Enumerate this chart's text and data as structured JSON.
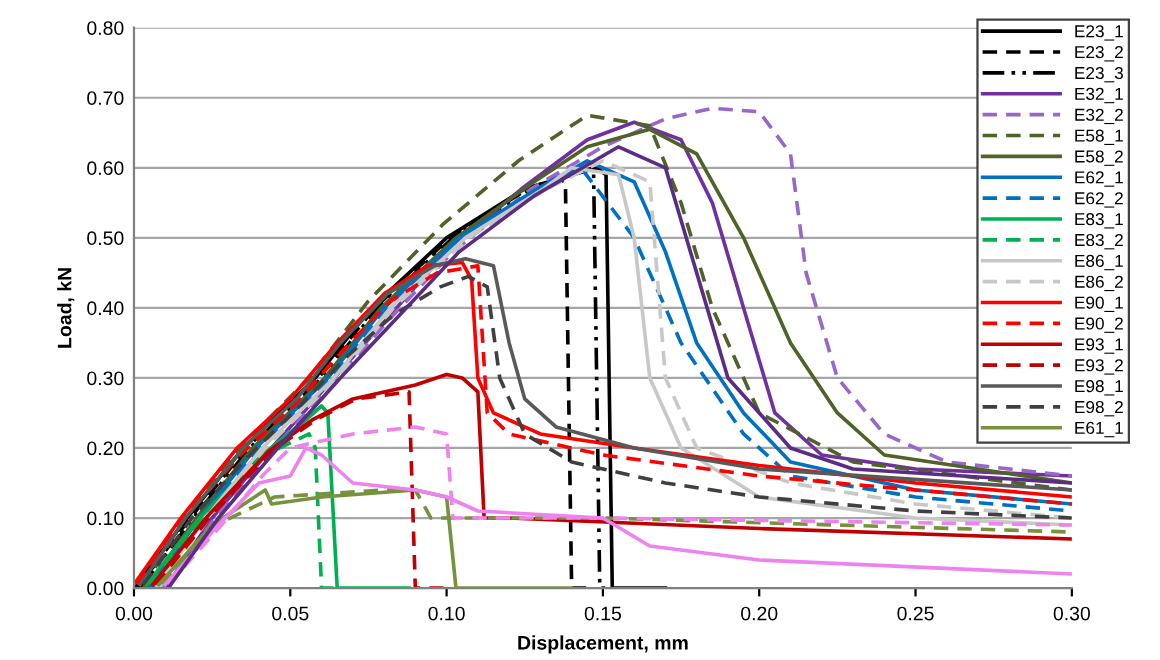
{
  "chart_data": {
    "type": "line",
    "xlabel": "Displacement, mm",
    "ylabel": "Load, kN",
    "xlim": [
      0,
      0.3
    ],
    "xticks": [
      {
        "value": 0,
        "label": "0.00"
      },
      {
        "value": 0.05,
        "label": "0.05"
      },
      {
        "value": 0.1,
        "label": "0.10"
      },
      {
        "value": 0.15,
        "label": "0.15"
      },
      {
        "value": 0.2,
        "label": "0.20"
      },
      {
        "value": 0.25,
        "label": "0.25"
      },
      {
        "value": 0.3,
        "label": "0.30"
      }
    ],
    "ylim": [
      0,
      0.8
    ],
    "yticks": [
      {
        "value": 0,
        "label": "0.00"
      },
      {
        "value": 0.1,
        "label": "0.10"
      },
      {
        "value": 0.2,
        "label": "0.20"
      },
      {
        "value": 0.3,
        "label": "0.30"
      },
      {
        "value": 0.4,
        "label": "0.40"
      },
      {
        "value": 0.5,
        "label": "0.50"
      },
      {
        "value": 0.6,
        "label": "0.60"
      },
      {
        "value": 0.7,
        "label": "0.70"
      },
      {
        "value": 0.8,
        "label": "0.80"
      }
    ],
    "grid": "y",
    "legend": "right",
    "marker": "none",
    "series": [
      {
        "name": "E23_1",
        "color": "#000000",
        "line_style": "solid",
        "x": [
          0,
          0.017,
          0.035,
          0.058,
          0.076,
          0.1,
          0.125,
          0.148,
          0.151,
          0.153,
          0.17
        ],
        "values": [
          0,
          0.1,
          0.2,
          0.3,
          0.4,
          0.5,
          0.57,
          0.6,
          0.59,
          0,
          0
        ]
      },
      {
        "name": "E23_2",
        "color": "#000000",
        "line_style": "dashed",
        "x": [
          0.001,
          0.018,
          0.036,
          0.059,
          0.077,
          0.101,
          0.126,
          0.135,
          0.138,
          0.14,
          0.147
        ],
        "values": [
          0,
          0.1,
          0.2,
          0.3,
          0.4,
          0.5,
          0.57,
          0.585,
          0.58,
          0,
          0
        ]
      },
      {
        "name": "E23_3",
        "color": "#000000",
        "line_style": "dashdot",
        "x": [
          0.002,
          0.019,
          0.037,
          0.06,
          0.078,
          0.102,
          0.127,
          0.147,
          0.149,
          0.152
        ],
        "values": [
          0,
          0.1,
          0.2,
          0.3,
          0.4,
          0.5,
          0.57,
          0.6,
          0,
          0
        ]
      },
      {
        "name": "E32_1",
        "color": "#7030a0",
        "line_style": "solid",
        "x": [
          0.01,
          0.025,
          0.044,
          0.064,
          0.082,
          0.1,
          0.124,
          0.145,
          0.16,
          0.175,
          0.185,
          0.195,
          0.205,
          0.22,
          0.25,
          0.3
        ],
        "values": [
          0,
          0.1,
          0.2,
          0.3,
          0.39,
          0.48,
          0.57,
          0.64,
          0.665,
          0.64,
          0.55,
          0.4,
          0.25,
          0.19,
          0.17,
          0.16
        ]
      },
      {
        "name": "E32_2",
        "color": "#9966cc",
        "line_style": "dashed",
        "x": [
          0.009,
          0.026,
          0.045,
          0.065,
          0.083,
          0.102,
          0.127,
          0.15,
          0.17,
          0.185,
          0.2,
          0.21,
          0.215,
          0.225,
          0.24,
          0.26,
          0.3
        ],
        "values": [
          0,
          0.1,
          0.2,
          0.3,
          0.39,
          0.48,
          0.57,
          0.63,
          0.67,
          0.685,
          0.68,
          0.62,
          0.45,
          0.3,
          0.22,
          0.18,
          0.16
        ]
      },
      {
        "name": "E58_1",
        "color": "#4f6228",
        "line_style": "dashed",
        "x": [
          0.003,
          0.016,
          0.034,
          0.056,
          0.075,
          0.099,
          0.123,
          0.145,
          0.165,
          0.175,
          0.185,
          0.2,
          0.23,
          0.3
        ],
        "values": [
          0,
          0.1,
          0.2,
          0.3,
          0.41,
          0.52,
          0.61,
          0.675,
          0.66,
          0.55,
          0.4,
          0.25,
          0.18,
          0.14
        ]
      },
      {
        "name": "E58_2",
        "color": "#4f6228",
        "line_style": "solid",
        "x": [
          0.004,
          0.02,
          0.038,
          0.061,
          0.079,
          0.103,
          0.128,
          0.145,
          0.165,
          0.18,
          0.195,
          0.21,
          0.225,
          0.24,
          0.3
        ],
        "values": [
          0,
          0.1,
          0.2,
          0.3,
          0.4,
          0.5,
          0.58,
          0.63,
          0.655,
          0.62,
          0.5,
          0.35,
          0.25,
          0.19,
          0.15
        ]
      },
      {
        "name": "E62_1",
        "color": "#0070c0",
        "line_style": "solid",
        "x": [
          0.005,
          0.021,
          0.039,
          0.062,
          0.08,
          0.104,
          0.129,
          0.145,
          0.16,
          0.17,
          0.18,
          0.195,
          0.21,
          0.25,
          0.3
        ],
        "values": [
          0,
          0.1,
          0.2,
          0.3,
          0.4,
          0.5,
          0.57,
          0.61,
          0.58,
          0.48,
          0.35,
          0.25,
          0.18,
          0.14,
          0.12
        ]
      },
      {
        "name": "E62_2",
        "color": "#0070c0",
        "line_style": "dashed",
        "x": [
          0.006,
          0.022,
          0.04,
          0.063,
          0.081,
          0.105,
          0.13,
          0.143,
          0.16,
          0.175,
          0.195,
          0.21,
          0.25,
          0.3
        ],
        "values": [
          0,
          0.1,
          0.2,
          0.3,
          0.4,
          0.5,
          0.57,
          0.6,
          0.5,
          0.35,
          0.22,
          0.16,
          0.13,
          0.11
        ]
      },
      {
        "name": "E83_1",
        "color": "#00b050",
        "line_style": "solid",
        "x": [
          0.004,
          0.021,
          0.041,
          0.055,
          0.06,
          0.062,
          0.065,
          0.088
        ],
        "values": [
          0.005,
          0.1,
          0.19,
          0.24,
          0.26,
          0.25,
          0,
          0
        ]
      },
      {
        "name": "E83_2",
        "color": "#00b050",
        "line_style": "dashed",
        "x": [
          0.005,
          0.022,
          0.042,
          0.056,
          0.058,
          0.06,
          0.064
        ],
        "values": [
          0.005,
          0.1,
          0.19,
          0.22,
          0.2,
          0,
          0
        ]
      },
      {
        "name": "E86_1",
        "color": "#c8c8c8",
        "line_style": "solid",
        "x": [
          0.007,
          0.023,
          0.041,
          0.064,
          0.082,
          0.106,
          0.131,
          0.14,
          0.155,
          0.16,
          0.165,
          0.175,
          0.2,
          0.25,
          0.3
        ],
        "values": [
          0,
          0.1,
          0.2,
          0.3,
          0.4,
          0.5,
          0.57,
          0.6,
          0.59,
          0.5,
          0.3,
          0.2,
          0.13,
          0.1,
          0.09
        ]
      },
      {
        "name": "E86_2",
        "color": "#c8c8c8",
        "line_style": "dashed",
        "x": [
          0.008,
          0.024,
          0.042,
          0.065,
          0.083,
          0.107,
          0.132,
          0.15,
          0.165,
          0.17,
          0.18,
          0.21,
          0.25,
          0.3
        ],
        "values": [
          0,
          0.1,
          0.2,
          0.3,
          0.4,
          0.5,
          0.57,
          0.61,
          0.58,
          0.3,
          0.2,
          0.15,
          0.12,
          0.1
        ]
      },
      {
        "name": "E90_1",
        "color": "#ff0000",
        "line_style": "solid",
        "x": [
          0,
          0.015,
          0.033,
          0.05,
          0.065,
          0.08,
          0.094,
          0.105,
          0.108,
          0.11,
          0.115,
          0.13,
          0.16,
          0.2,
          0.25,
          0.3
        ],
        "values": [
          0.005,
          0.1,
          0.2,
          0.27,
          0.35,
          0.42,
          0.46,
          0.465,
          0.44,
          0.3,
          0.25,
          0.22,
          0.2,
          0.175,
          0.15,
          0.13
        ]
      },
      {
        "name": "E90_2",
        "color": "#ff0000",
        "line_style": "dashed",
        "x": [
          0.001,
          0.016,
          0.034,
          0.051,
          0.067,
          0.082,
          0.097,
          0.11,
          0.113,
          0.12,
          0.15,
          0.2,
          0.25,
          0.3
        ],
        "values": [
          0.005,
          0.1,
          0.19,
          0.26,
          0.34,
          0.41,
          0.45,
          0.46,
          0.25,
          0.22,
          0.19,
          0.16,
          0.14,
          0.12
        ]
      },
      {
        "name": "E93_1",
        "color": "#c00000",
        "line_style": "solid",
        "x": [
          0.006,
          0.023,
          0.043,
          0.057,
          0.07,
          0.09,
          0.1,
          0.105,
          0.11,
          0.112,
          0.12,
          0.2,
          0.3
        ],
        "values": [
          0.005,
          0.1,
          0.195,
          0.24,
          0.27,
          0.29,
          0.305,
          0.3,
          0.28,
          0.1,
          0.1,
          0.085,
          0.07
        ]
      },
      {
        "name": "E93_2",
        "color": "#c00000",
        "line_style": "dashed",
        "x": [
          0.007,
          0.024,
          0.044,
          0.058,
          0.071,
          0.088,
          0.09,
          0.102
        ],
        "values": [
          0.005,
          0.1,
          0.195,
          0.24,
          0.27,
          0.28,
          0,
          0
        ]
      },
      {
        "name": "E98_1",
        "color": "#595959",
        "line_style": "solid",
        "x": [
          0.002,
          0.0165,
          0.036,
          0.052,
          0.066,
          0.081,
          0.096,
          0.106,
          0.115,
          0.12,
          0.125,
          0.135,
          0.16,
          0.2,
          0.3
        ],
        "values": [
          0.005,
          0.1,
          0.205,
          0.27,
          0.35,
          0.42,
          0.46,
          0.47,
          0.46,
          0.35,
          0.27,
          0.23,
          0.2,
          0.17,
          0.14
        ]
      },
      {
        "name": "E98_2",
        "color": "#404040",
        "line_style": "dashed",
        "x": [
          0.003,
          0.0185,
          0.037,
          0.053,
          0.068,
          0.083,
          0.098,
          0.107,
          0.113,
          0.117,
          0.125,
          0.14,
          0.17,
          0.2,
          0.25,
          0.3
        ],
        "values": [
          0.005,
          0.1,
          0.19,
          0.26,
          0.33,
          0.39,
          0.43,
          0.445,
          0.43,
          0.3,
          0.22,
          0.18,
          0.15,
          0.13,
          0.11,
          0.1
        ]
      },
      {
        "name": "E61_1",
        "color": "#76923c",
        "line_style": "solid",
        "x": [
          0.008,
          0.025,
          0.042,
          0.044,
          0.06,
          0.09,
          0.1,
          0.103,
          0.14
        ],
        "values": [
          0.005,
          0.09,
          0.14,
          0.12,
          0.13,
          0.14,
          0.13,
          0,
          0
        ]
      },
      {
        "color": "#76923c",
        "line_style": "dashed",
        "x": [
          0.009,
          0.026,
          0.045,
          0.08,
          0.09,
          0.095,
          0.15,
          0.3
        ],
        "values": [
          0.005,
          0.09,
          0.13,
          0.14,
          0.14,
          0.1,
          0.1,
          0.08
        ]
      },
      {
        "color": "#ee82ee",
        "line_style": "solid",
        "x": [
          0.01,
          0.027,
          0.04,
          0.05,
          0.055,
          0.06,
          0.07,
          0.09,
          0.1,
          0.11,
          0.15,
          0.165,
          0.2,
          0.3
        ],
        "values": [
          0.005,
          0.09,
          0.15,
          0.16,
          0.2,
          0.19,
          0.15,
          0.14,
          0.13,
          0.11,
          0.1,
          0.06,
          0.04,
          0.02
        ]
      },
      {
        "color": "#ee82ee",
        "line_style": "dashed",
        "x": [
          0.011,
          0.028,
          0.041,
          0.05,
          0.07,
          0.09,
          0.1,
          0.102,
          0.15,
          0.3
        ],
        "values": [
          0.005,
          0.09,
          0.16,
          0.2,
          0.22,
          0.23,
          0.22,
          0.1,
          0.1,
          0.09
        ]
      },
      {
        "color": "#5b2c83",
        "line_style": "solid",
        "x": [
          0.011,
          0.027,
          0.046,
          0.066,
          0.085,
          0.104,
          0.128,
          0.155,
          0.17,
          0.18,
          0.19,
          0.21,
          0.23,
          0.3
        ],
        "values": [
          0,
          0.1,
          0.2,
          0.3,
          0.39,
          0.48,
          0.56,
          0.63,
          0.6,
          0.45,
          0.3,
          0.2,
          0.17,
          0.15
        ]
      }
    ]
  }
}
